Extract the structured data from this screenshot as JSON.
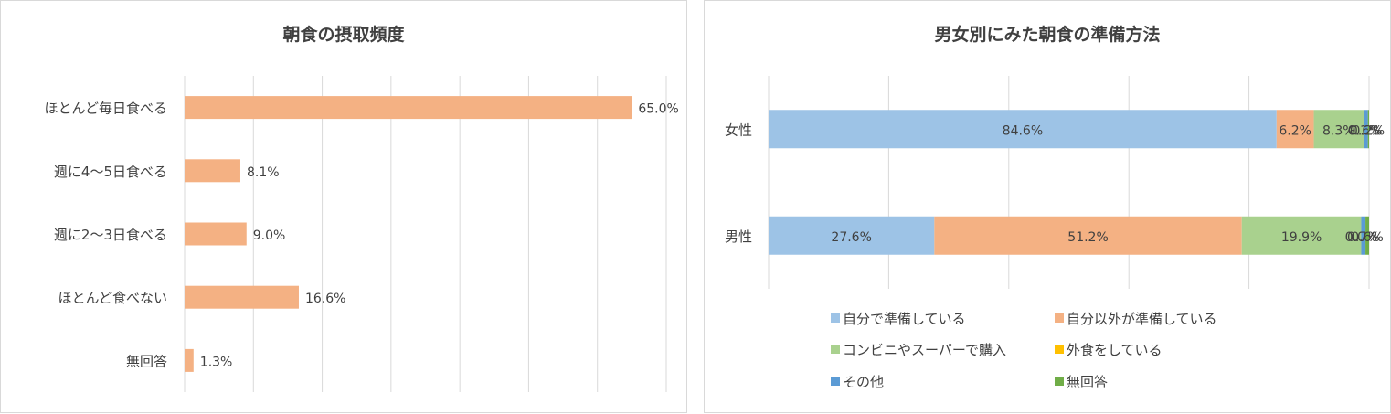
{
  "chart_data": [
    {
      "type": "bar",
      "orientation": "horizontal",
      "title": "朝食の摂取頻度",
      "categories": [
        "ほとんど毎日食べる",
        "週に4～5日食べる",
        "週に2～3日食べる",
        "ほとんど食べない",
        "無回答"
      ],
      "values": [
        65.0,
        8.1,
        9.0,
        16.6,
        1.3
      ],
      "value_labels": [
        "65.0%",
        "8.1%",
        "9.0%",
        "16.6%",
        "1.3%"
      ],
      "xlim": [
        0,
        70
      ],
      "grid": true,
      "color": "#F4B183"
    },
    {
      "type": "bar",
      "orientation": "horizontal",
      "stacked": "percent",
      "title": "男女別にみた朝食の準備方法",
      "categories": [
        "女性",
        "男性"
      ],
      "series": [
        {
          "name": "自分で準備している",
          "color": "#9DC3E6",
          "values": [
            84.6,
            27.6
          ],
          "labels": [
            "84.6%",
            "27.6%"
          ]
        },
        {
          "name": "自分以外が準備している",
          "color": "#F4B183",
          "values": [
            6.2,
            51.2
          ],
          "labels": [
            "6.2%",
            "51.2%"
          ]
        },
        {
          "name": "コンビニやスーパーで購入",
          "color": "#A9D18E",
          "values": [
            8.3,
            19.9
          ],
          "labels": [
            "8.3%",
            "19.9%"
          ]
        },
        {
          "name": "外食をしている",
          "color": "#FFC000",
          "values": [
            0.1,
            0.0
          ],
          "labels": [
            "0.1%",
            "0.0%"
          ]
        },
        {
          "name": "その他",
          "color": "#5B9BD5",
          "values": [
            0.6,
            0.7
          ],
          "labels": [
            "0.6%",
            "0.7%"
          ]
        },
        {
          "name": "無回答",
          "color": "#70AD47",
          "values": [
            0.2,
            0.6
          ],
          "labels": [
            "0.2%",
            "0.6%"
          ]
        }
      ],
      "xlim": [
        0,
        100
      ],
      "grid": true,
      "legend": "bottom"
    }
  ]
}
